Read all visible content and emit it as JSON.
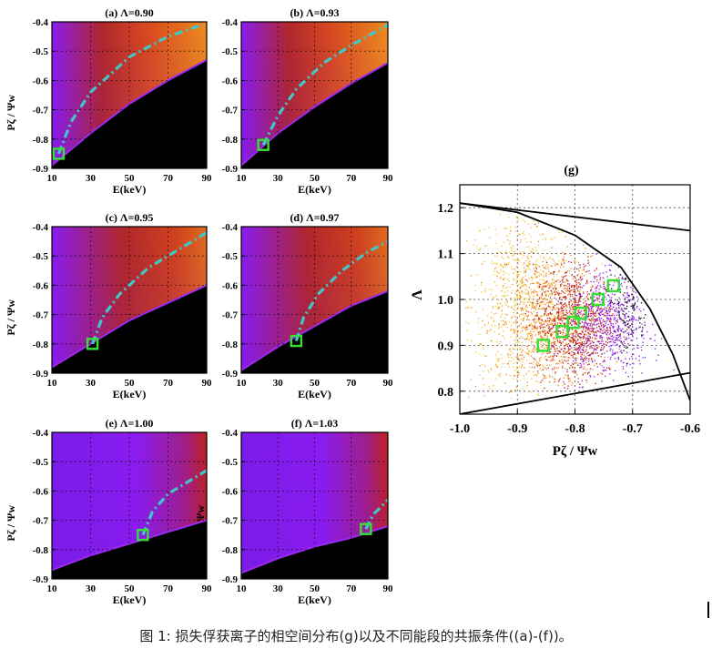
{
  "caption": "图 1: 损失俘获离子的相空间分布(g)以及不同能段的共振条件((a)-(f))。",
  "colors": {
    "purple": "#8a1cf0",
    "red": "#c0201e",
    "orange": "#ee8a1c",
    "black": "#000000",
    "cyan_curve": "#40c8c8",
    "green_marker": "#33e033"
  },
  "chart_data": [
    {
      "type": "heatmap",
      "title": "(a) Λ=0.90",
      "xlabel": "E(keV)",
      "ylabel": "Pζ / Ψw",
      "xlim": [
        10,
        90
      ],
      "ylim": [
        -0.9,
        -0.4
      ],
      "xticks": [
        "10",
        "30",
        "50",
        "70",
        "90"
      ],
      "yticks": [
        "-0.4",
        "-0.5",
        "-0.6",
        "-0.7",
        "-0.8",
        "-0.9"
      ],
      "boundary": [
        [
          10,
          -0.89
        ],
        [
          30,
          -0.78
        ],
        [
          50,
          -0.68
        ],
        [
          70,
          -0.6
        ],
        [
          90,
          -0.53
        ]
      ],
      "resonance_curve": [
        [
          13.5,
          -0.85
        ],
        [
          20,
          -0.74
        ],
        [
          30,
          -0.64
        ],
        [
          50,
          -0.52
        ],
        [
          70,
          -0.45
        ],
        [
          88,
          -0.41
        ]
      ],
      "marker": [
        13.5,
        -0.85
      ]
    },
    {
      "type": "heatmap",
      "title": "(b) Λ=0.93",
      "xlabel": "E(keV)",
      "ylabel": "Pζ / Ψw",
      "xlim": [
        10,
        90
      ],
      "ylim": [
        -0.9,
        -0.4
      ],
      "xticks": [
        "10",
        "30",
        "50",
        "70",
        "90"
      ],
      "yticks": [
        "-0.4",
        "-0.5",
        "-0.6",
        "-0.7",
        "-0.8",
        "-0.9"
      ],
      "boundary": [
        [
          10,
          -0.89
        ],
        [
          30,
          -0.78
        ],
        [
          50,
          -0.69
        ],
        [
          70,
          -0.61
        ],
        [
          90,
          -0.54
        ]
      ],
      "resonance_curve": [
        [
          22,
          -0.82
        ],
        [
          30,
          -0.72
        ],
        [
          40,
          -0.63
        ],
        [
          55,
          -0.54
        ],
        [
          70,
          -0.48
        ],
        [
          90,
          -0.41
        ]
      ],
      "marker": [
        22,
        -0.82
      ]
    },
    {
      "type": "heatmap",
      "title": "(c) Λ=0.95",
      "xlabel": "E(keV)",
      "ylabel": "Pζ / Ψw",
      "xlim": [
        10,
        90
      ],
      "ylim": [
        -0.9,
        -0.4
      ],
      "xticks": [
        "10",
        "30",
        "50",
        "70",
        "90"
      ],
      "yticks": [
        "-0.4",
        "-0.5",
        "-0.6",
        "-0.7",
        "-0.8",
        "-0.9"
      ],
      "boundary": [
        [
          10,
          -0.88
        ],
        [
          30,
          -0.8
        ],
        [
          50,
          -0.72
        ],
        [
          70,
          -0.66
        ],
        [
          90,
          -0.6
        ]
      ],
      "resonance_curve": [
        [
          31,
          -0.8
        ],
        [
          36,
          -0.71
        ],
        [
          45,
          -0.63
        ],
        [
          60,
          -0.54
        ],
        [
          75,
          -0.48
        ],
        [
          90,
          -0.42
        ]
      ],
      "marker": [
        31,
        -0.8
      ]
    },
    {
      "type": "heatmap",
      "title": "(d) Λ=0.97",
      "xlabel": "E(keV)",
      "ylabel": "Pζ / Ψw",
      "xlim": [
        10,
        90
      ],
      "ylim": [
        -0.9,
        -0.4
      ],
      "xticks": [
        "10",
        "30",
        "50",
        "70",
        "90"
      ],
      "yticks": [
        "-0.4",
        "-0.5",
        "-0.6",
        "-0.7",
        "-0.8",
        "-0.9"
      ],
      "boundary": [
        [
          10,
          -0.89
        ],
        [
          30,
          -0.81
        ],
        [
          50,
          -0.74
        ],
        [
          70,
          -0.67
        ],
        [
          90,
          -0.62
        ]
      ],
      "resonance_curve": [
        [
          40,
          -0.79
        ],
        [
          44,
          -0.71
        ],
        [
          52,
          -0.63
        ],
        [
          65,
          -0.55
        ],
        [
          78,
          -0.49
        ],
        [
          90,
          -0.45
        ]
      ],
      "marker": [
        40,
        -0.79
      ]
    },
    {
      "type": "heatmap",
      "title": "(e) Λ=1.00",
      "xlabel": "E(keV)",
      "ylabel": "Pζ / Ψw",
      "xlim": [
        10,
        90
      ],
      "ylim": [
        -0.9,
        -0.4
      ],
      "xticks": [
        "10",
        "30",
        "50",
        "70",
        "90"
      ],
      "yticks": [
        "-0.4",
        "-0.5",
        "-0.6",
        "-0.7",
        "-0.8",
        "-0.9"
      ],
      "boundary": [
        [
          10,
          -0.87
        ],
        [
          30,
          -0.82
        ],
        [
          50,
          -0.78
        ],
        [
          70,
          -0.74
        ],
        [
          90,
          -0.7
        ]
      ],
      "resonance_curve": [
        [
          57,
          -0.75
        ],
        [
          62,
          -0.67
        ],
        [
          70,
          -0.61
        ],
        [
          80,
          -0.57
        ],
        [
          90,
          -0.53
        ]
      ],
      "marker": [
        57,
        -0.75
      ]
    },
    {
      "type": "heatmap",
      "title": "(f) Λ=1.03",
      "xlabel": "E(keV)",
      "ylabel": "Pζ / Ψw",
      "xlim": [
        10,
        90
      ],
      "ylim": [
        -0.9,
        -0.4
      ],
      "xticks": [
        "10",
        "30",
        "50",
        "70",
        "90"
      ],
      "yticks": [
        "-0.4",
        "-0.5",
        "-0.6",
        "-0.7",
        "-0.8",
        "-0.9"
      ],
      "boundary": [
        [
          10,
          -0.88
        ],
        [
          30,
          -0.83
        ],
        [
          50,
          -0.79
        ],
        [
          70,
          -0.76
        ],
        [
          90,
          -0.72
        ]
      ],
      "resonance_curve": [
        [
          78,
          -0.73
        ],
        [
          82,
          -0.68
        ],
        [
          87,
          -0.65
        ],
        [
          90,
          -0.63
        ]
      ],
      "marker": [
        78,
        -0.73
      ]
    },
    {
      "type": "scatter",
      "title": "(g)",
      "xlabel": "Pζ / Ψw",
      "ylabel": "Λ",
      "xlim": [
        -1.0,
        -0.6
      ],
      "ylim": [
        0.75,
        1.25
      ],
      "xticks": [
        "-1.0",
        "-0.9",
        "-0.8",
        "-0.7",
        "-0.6"
      ],
      "yticks": [
        "1.2",
        "1.1",
        "1.0",
        "0.9",
        "0.8"
      ],
      "grid": true,
      "boundary_lines": [
        {
          "points": [
            [
              -1.0,
              1.21
            ],
            [
              -0.6,
              1.15
            ]
          ]
        },
        {
          "points": [
            [
              -1.0,
              0.75
            ],
            [
              -0.6,
              0.84
            ]
          ]
        },
        {
          "points": [
            [
              -1.0,
              1.21
            ],
            [
              -0.9,
              1.19
            ],
            [
              -0.8,
              1.14
            ],
            [
              -0.72,
              1.07
            ],
            [
              -0.67,
              0.98
            ],
            [
              -0.63,
              0.88
            ],
            [
              -0.6,
              0.78
            ]
          ]
        }
      ],
      "clusters": [
        {
          "color": "#f2c43a",
          "count": 700,
          "center": [
            -0.895,
            0.99
          ],
          "spread": [
            0.045,
            0.11
          ]
        },
        {
          "color": "#ee8a1c",
          "count": 900,
          "center": [
            -0.845,
            0.95
          ],
          "spread": [
            0.045,
            0.08
          ]
        },
        {
          "color": "#c0201e",
          "count": 900,
          "center": [
            -0.8,
            0.95
          ],
          "spread": [
            0.035,
            0.06
          ]
        },
        {
          "color": "#8a1cf0",
          "count": 650,
          "center": [
            -0.74,
            0.95
          ],
          "spread": [
            0.035,
            0.06
          ]
        },
        {
          "color": "#000000",
          "count": 120,
          "center": [
            -0.705,
            0.98
          ],
          "spread": [
            0.02,
            0.05
          ]
        }
      ],
      "markers": [
        [
          -0.855,
          0.9
        ],
        [
          -0.822,
          0.93
        ],
        [
          -0.803,
          0.95
        ],
        [
          -0.79,
          0.97
        ],
        [
          -0.76,
          1.0
        ],
        [
          -0.733,
          1.03
        ]
      ]
    }
  ]
}
